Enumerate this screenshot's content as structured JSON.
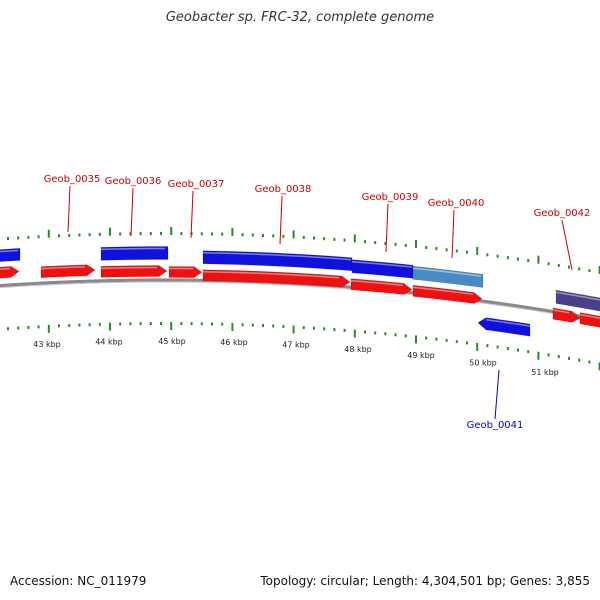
{
  "title": "Geobacter sp. FRC-32, complete genome",
  "footer": {
    "accession": "Accession: NC_011979",
    "summary": "Topology: circular; Length: 4,304,501 bp; Genes: 3,855"
  },
  "colors": {
    "forward_gene": "#ee1111",
    "reverse_gene": "#1111dd",
    "highlight_gene": "#4a8ac4",
    "purple_gene": "#4a3f8a",
    "label_red": "#cc0000",
    "label_blue": "#0000cc",
    "tick": "#2a8a2a",
    "backbone": "#8a8a8a"
  },
  "scale": {
    "labels": [
      "43 kbp",
      "44 kbp",
      "45 kbp",
      "46 kbp",
      "47 kbp",
      "48 kbp",
      "49 kbp",
      "50 kbp",
      "51 kbp"
    ]
  },
  "gene_labels": [
    {
      "text": "Geob_0035",
      "color": "red"
    },
    {
      "text": "Geob_0036",
      "color": "red"
    },
    {
      "text": "Geob_0037",
      "color": "red"
    },
    {
      "text": "Geob_0038",
      "color": "red"
    },
    {
      "text": "Geob_0039",
      "color": "red"
    },
    {
      "text": "Geob_0040",
      "color": "red"
    },
    {
      "text": "Geob_0041",
      "color": "blue"
    },
    {
      "text": "Geob_0042",
      "color": "red"
    }
  ]
}
